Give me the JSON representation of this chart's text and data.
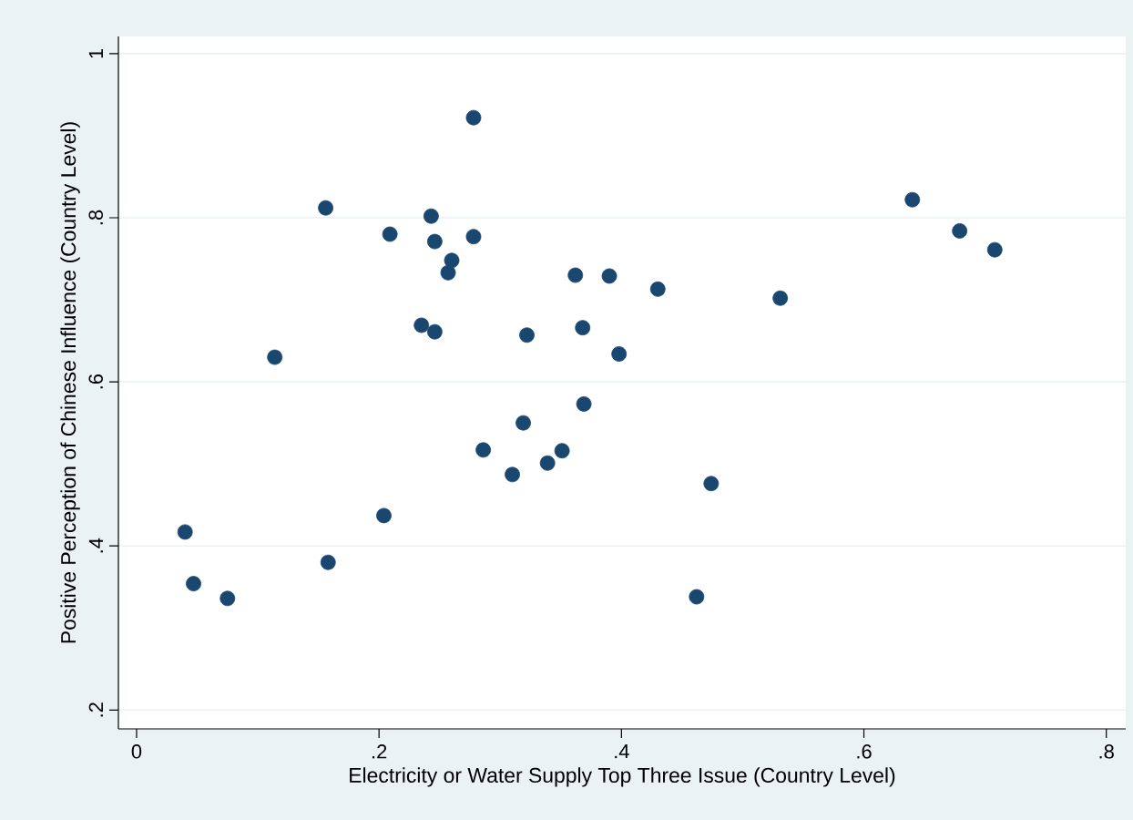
{
  "chart_data": {
    "type": "scatter",
    "xlabel": "Electricity or Water Supply Top Three Issue (Country Level)",
    "ylabel": "Positive Perception of Chinese Influence (Country Level)",
    "xlim": [
      -0.015,
      0.816
    ],
    "ylim": [
      0.177,
      1.021
    ],
    "xticks": [
      0,
      {
        "value": 0.2,
        "label": ".2"
      },
      {
        "value": 0.4,
        "label": ".4"
      },
      {
        "value": 0.6,
        "label": ".6"
      },
      {
        "value": 0.8,
        "label": ".8"
      }
    ],
    "yticks": [
      {
        "value": 0.2,
        "label": ".2"
      },
      {
        "value": 0.4,
        "label": ".4"
      },
      {
        "value": 0.6,
        "label": ".6"
      },
      {
        "value": 0.8,
        "label": ".8"
      },
      1
    ],
    "grid": "y",
    "marker": "circle",
    "color": "#1a476f",
    "x": [
      0.04,
      0.047,
      0.075,
      0.114,
      0.156,
      0.158,
      0.204,
      0.209,
      0.235,
      0.243,
      0.246,
      0.246,
      0.26,
      0.257,
      0.278,
      0.278,
      0.286,
      0.31,
      0.319,
      0.322,
      0.339,
      0.351,
      0.362,
      0.368,
      0.369,
      0.39,
      0.398,
      0.43,
      0.462,
      0.474,
      0.531,
      0.64,
      0.679,
      0.708
    ],
    "values": [
      0.417,
      0.354,
      0.336,
      0.63,
      0.812,
      0.38,
      0.437,
      0.78,
      0.669,
      0.802,
      0.771,
      0.661,
      0.748,
      0.733,
      0.922,
      0.777,
      0.517,
      0.487,
      0.55,
      0.657,
      0.501,
      0.516,
      0.73,
      0.666,
      0.573,
      0.729,
      0.634,
      0.713,
      0.338,
      0.476,
      0.702,
      0.822,
      0.784,
      0.761
    ]
  }
}
